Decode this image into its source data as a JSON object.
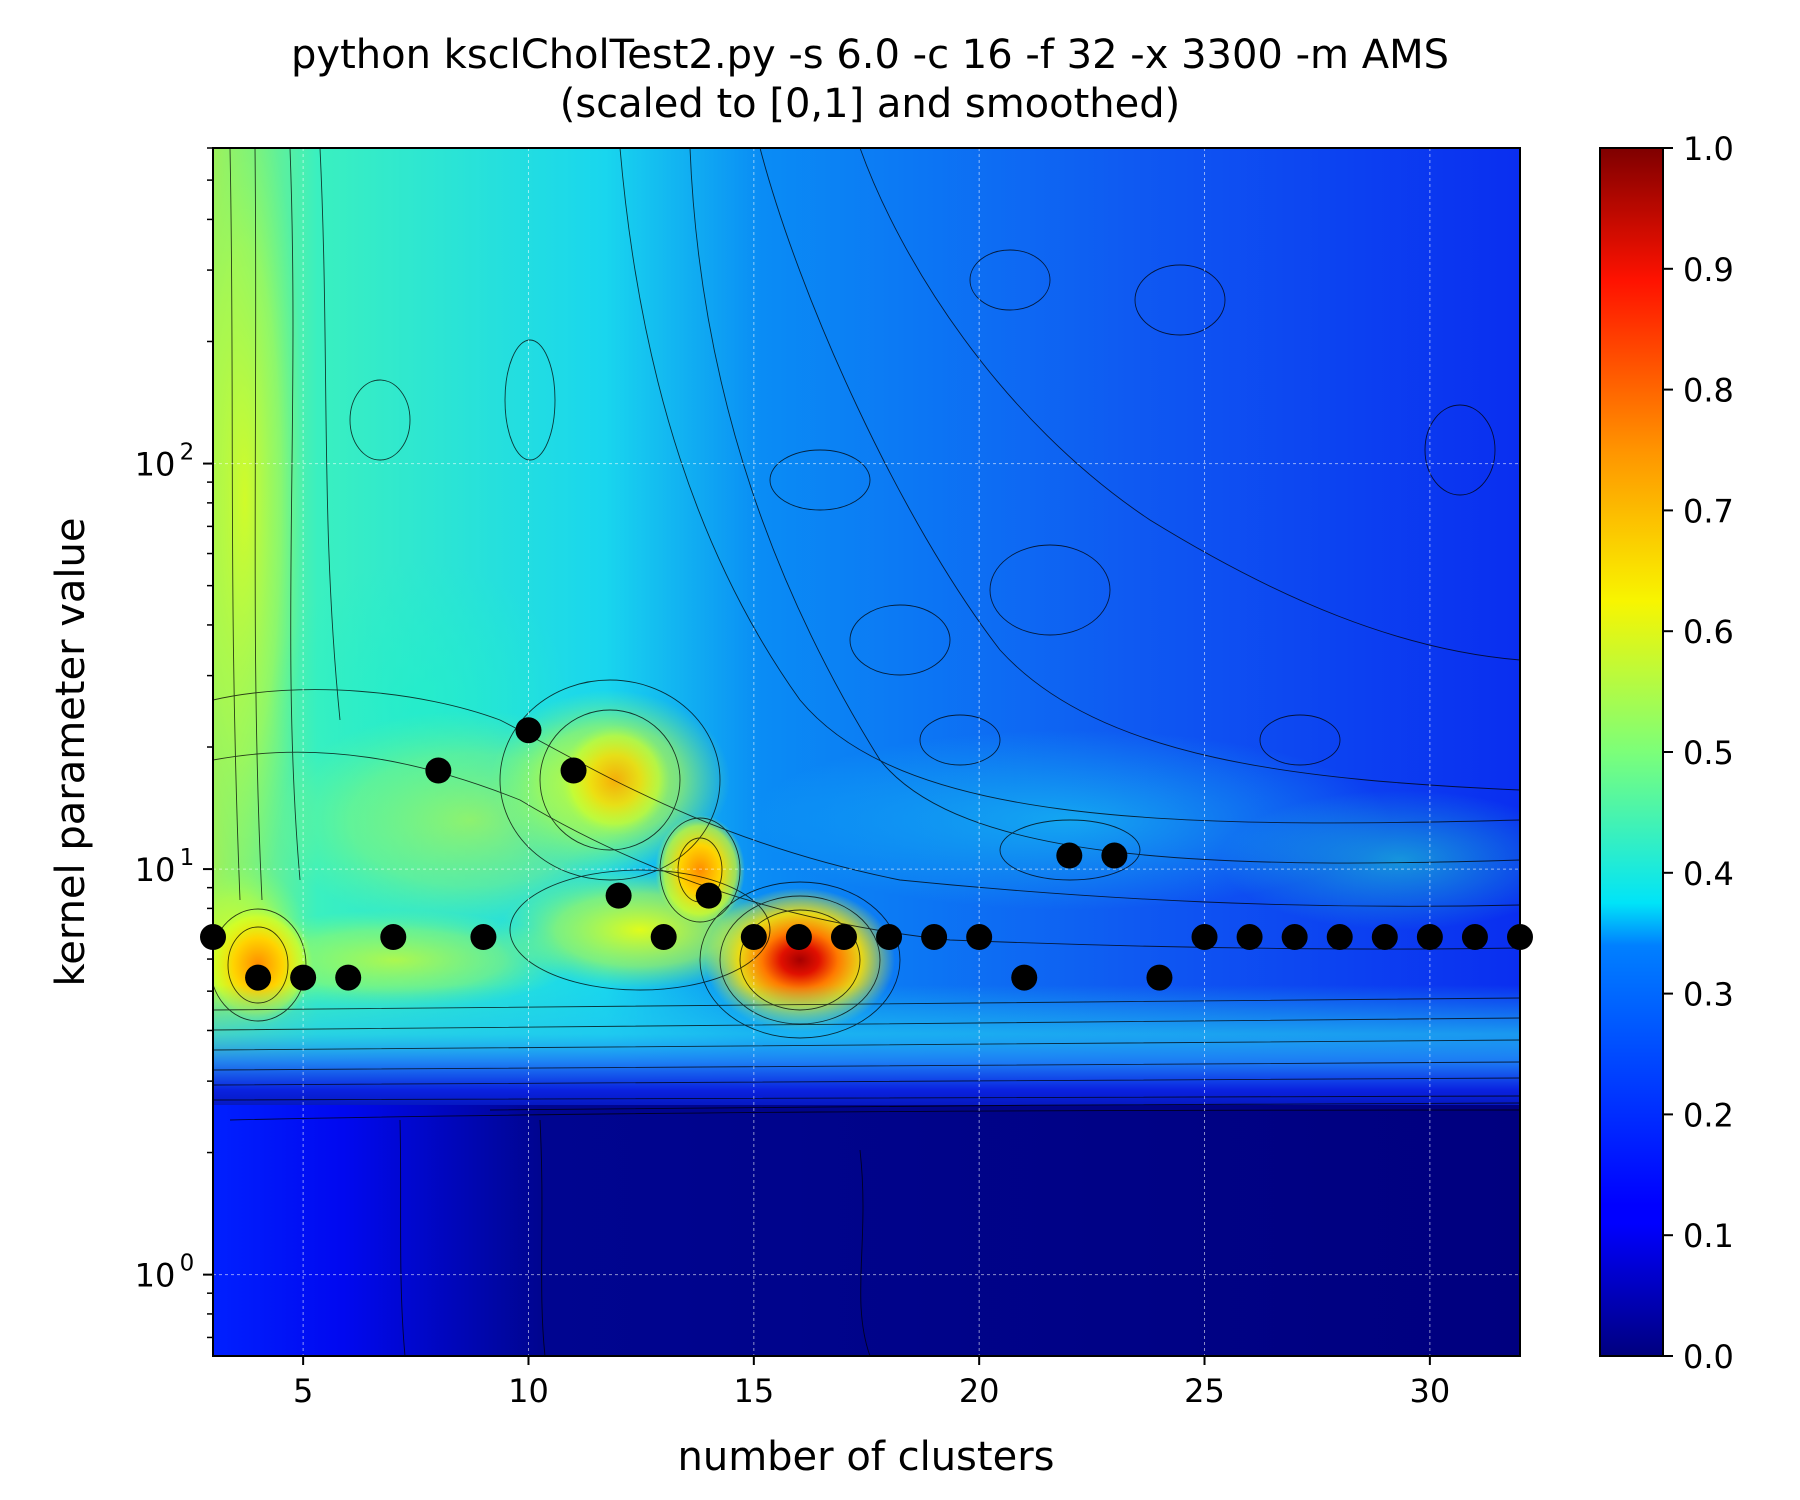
{
  "chart_data": {
    "type": "heatmap",
    "title": "python ksclCholTest2.py -s 6.0 -c 16 -f 32 -x 3300 -m AMS",
    "subtitle": "(scaled to [0,1] and smoothed)",
    "xlabel": "number of clusters",
    "ylabel": "kernel parameter value",
    "xlim": [
      3,
      32
    ],
    "ylim": [
      0.63,
      600
    ],
    "yscale": "log",
    "x_ticks": [
      5,
      10,
      15,
      20,
      25,
      30
    ],
    "x_tick_labels": [
      "5",
      "10",
      "15",
      "20",
      "25",
      "30"
    ],
    "y_ticks": [
      1,
      10,
      100
    ],
    "y_tick_label_base": "10",
    "y_tick_label_exps": [
      "0",
      "1",
      "2"
    ],
    "grid": true,
    "colormap": "jet",
    "colorbar": {
      "range": [
        0,
        1
      ],
      "ticks": [
        "0.0",
        "0.1",
        "0.2",
        "0.3",
        "0.4",
        "0.5",
        "0.6",
        "0.7",
        "0.8",
        "0.9",
        "1.0"
      ]
    },
    "hot_spots": [
      {
        "x": 16,
        "y": 6.0,
        "value": 1.0
      },
      {
        "x": 3.8,
        "y": 5.9,
        "value": 0.78
      },
      {
        "x": 14,
        "y": 9.5,
        "value": 0.75
      },
      {
        "x": 12,
        "y": 15,
        "value": 0.7
      }
    ],
    "optimal_points": {
      "marker_color": "#000000",
      "x": [
        3,
        4,
        5,
        6,
        7,
        8,
        9,
        10,
        11,
        12,
        13,
        14,
        15,
        16,
        17,
        18,
        19,
        20,
        21,
        22,
        23,
        24,
        25,
        26,
        27,
        28,
        29,
        30,
        31,
        32
      ],
      "y": [
        6.8,
        5.4,
        5.4,
        5.4,
        6.8,
        17.5,
        6.8,
        22.0,
        17.5,
        8.6,
        6.8,
        8.6,
        6.8,
        6.8,
        6.8,
        6.8,
        6.8,
        6.8,
        5.4,
        10.8,
        10.8,
        5.4,
        6.8,
        6.8,
        6.8,
        6.8,
        6.8,
        6.8,
        6.8,
        6.8
      ]
    }
  }
}
